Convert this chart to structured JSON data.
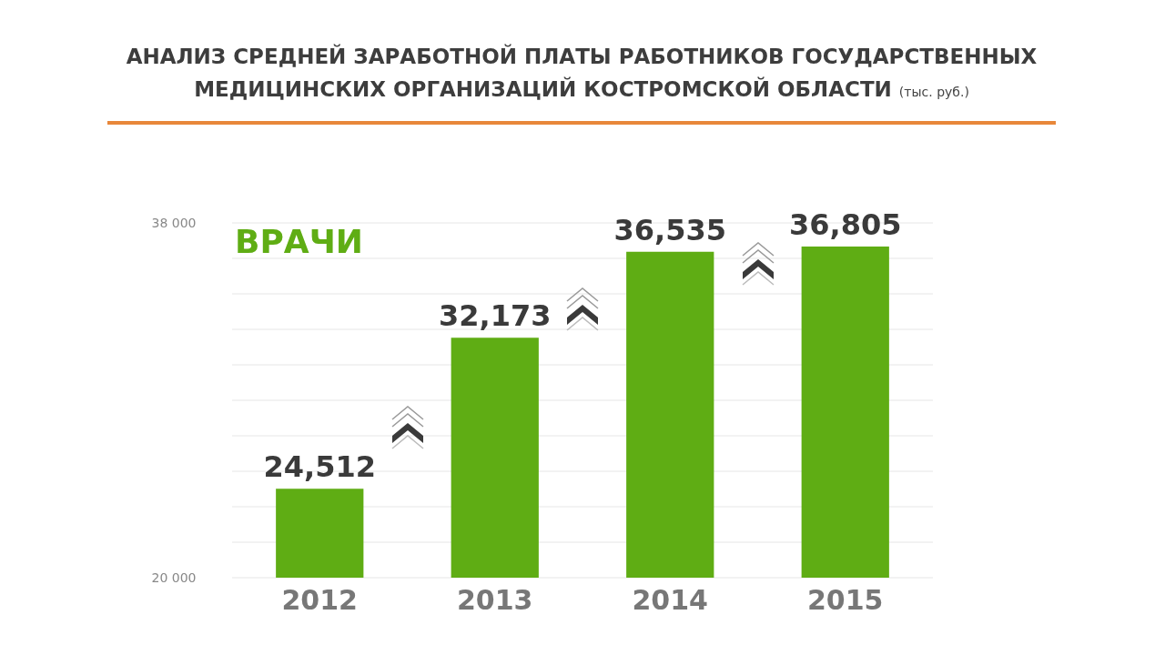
{
  "chart_data": {
    "type": "bar",
    "title": "АНАЛИЗ СРЕДНЕЙ ЗАРАБОТНОЙ ПЛАТЫ РАБОТНИКОВ ГОСУДАРСТВЕННЫХ МЕДИЦИНСКИХ ОРГАНИЗАЦИЙ КОСТРОМСКОЙ ОБЛАСТИ",
    "subtitle": "(тыс. руб.)",
    "categories": [
      "2012",
      "2013",
      "2014",
      "2015"
    ],
    "values": [
      24512,
      32173,
      36535,
      36805
    ],
    "value_labels": [
      "24,512",
      "32,173",
      "36,535",
      "36,805"
    ],
    "color": "#5fad14",
    "ylim": [
      20000,
      38000
    ],
    "yticks": [
      {
        "value": 20000,
        "label": "20 000"
      },
      {
        "value": 21800,
        "label": null
      },
      {
        "value": 23600,
        "label": null
      },
      {
        "value": 25400,
        "label": null
      },
      {
        "value": 27200,
        "label": null
      },
      {
        "value": 29000,
        "label": null
      },
      {
        "value": 30800,
        "label": null
      },
      {
        "value": 32600,
        "label": null
      },
      {
        "value": 34400,
        "label": null
      },
      {
        "value": 36200,
        "label": null
      },
      {
        "value": 38000,
        "label": "38 000"
      }
    ],
    "grid": "y",
    "annotations": [
      "ВРАЧИ"
    ]
  }
}
